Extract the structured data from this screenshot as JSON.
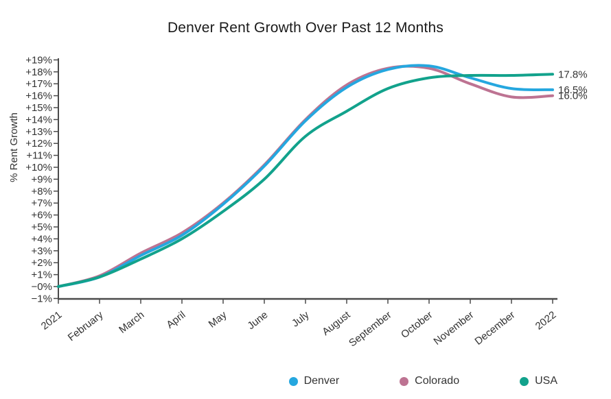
{
  "chart_data": {
    "type": "line",
    "title": "Denver Rent Growth Over Past 12 Months",
    "xlabel": "",
    "ylabel": "% Rent Growth",
    "categories": [
      "2021",
      "February",
      "March",
      "April",
      "May",
      "June",
      "July",
      "August",
      "September",
      "October",
      "November",
      "December",
      "2022"
    ],
    "series": [
      {
        "name": "Denver",
        "color": "#25A7DF",
        "values": [
          0.0,
          0.8,
          2.6,
          4.3,
          6.9,
          10.1,
          13.9,
          16.7,
          18.2,
          18.5,
          17.5,
          16.6,
          16.5
        ],
        "end_label": "16.5%"
      },
      {
        "name": "Colorado",
        "color": "#BD7392",
        "values": [
          0.0,
          0.9,
          2.8,
          4.5,
          7.0,
          10.2,
          14.0,
          16.9,
          18.3,
          18.3,
          17.0,
          15.9,
          16.0
        ],
        "end_label": "16.0%"
      },
      {
        "name": "USA",
        "color": "#12A28C",
        "values": [
          0.0,
          0.8,
          2.3,
          4.0,
          6.3,
          9.0,
          12.6,
          14.7,
          16.6,
          17.5,
          17.7,
          17.7,
          17.8
        ],
        "end_label": "17.8%"
      }
    ],
    "y_ticks": [
      {
        "value": 19,
        "label": "+19%"
      },
      {
        "value": 18,
        "label": "+18%"
      },
      {
        "value": 17,
        "label": "+17%"
      },
      {
        "value": 16,
        "label": "+16%"
      },
      {
        "value": 15,
        "label": "+15%"
      },
      {
        "value": 14,
        "label": "+14%"
      },
      {
        "value": 13,
        "label": "+13%"
      },
      {
        "value": 12,
        "label": "+12%"
      },
      {
        "value": 11,
        "label": "+11%"
      },
      {
        "value": 10,
        "label": "+10%"
      },
      {
        "value": 9,
        "label": "+9%"
      },
      {
        "value": 8,
        "label": "+8%"
      },
      {
        "value": 7,
        "label": "+7%"
      },
      {
        "value": 6,
        "label": "+6%"
      },
      {
        "value": 5,
        "label": "+5%"
      },
      {
        "value": 4,
        "label": "+4%"
      },
      {
        "value": 3,
        "label": "+3%"
      },
      {
        "value": 2,
        "label": "+2%"
      },
      {
        "value": 1,
        "label": "+1%"
      },
      {
        "value": 0,
        "label": "−0%"
      },
      {
        "value": -1,
        "label": "−1%"
      }
    ],
    "ylim": [
      -1,
      19
    ],
    "grid": false,
    "legend_position": "bottom",
    "draw_order": [
      "Colorado",
      "Denver",
      "USA"
    ],
    "line_width": 4,
    "text_color": "#333333",
    "axis_color": "#4a4a4a"
  }
}
